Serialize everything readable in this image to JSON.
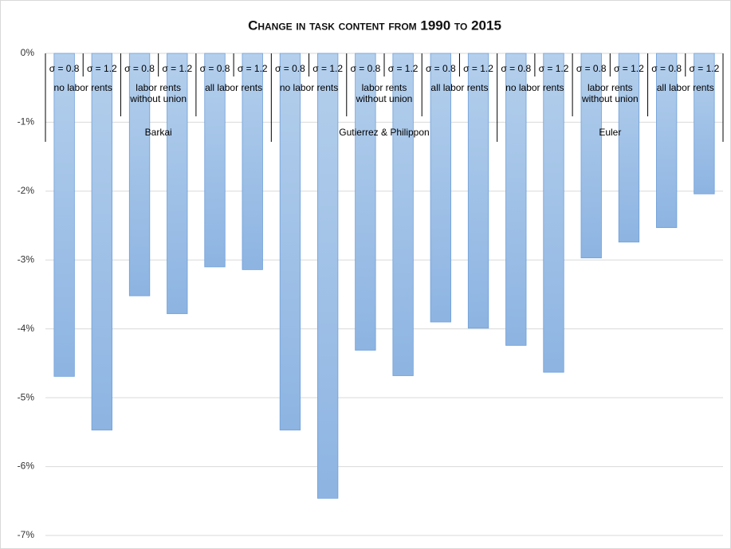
{
  "chart_data": {
    "type": "bar",
    "title": "Change in task content from 1990 to 2015",
    "categories": [
      "σ = 0.8",
      "σ = 1.2",
      "σ = 0.8",
      "σ = 1.2",
      "σ = 0.8",
      "σ = 1.2",
      "σ = 0.8",
      "σ = 1.2",
      "σ = 0.8",
      "σ = 1.2",
      "σ = 0.8",
      "σ = 1.2",
      "σ = 0.8",
      "σ = 1.2",
      "σ = 0.8",
      "σ = 1.2",
      "σ = 0.8",
      "σ = 1.2"
    ],
    "groups": [
      "no labor rents",
      "labor rents without union",
      "all labor rents",
      "no labor rents",
      "labor rents without union",
      "all labor rents",
      "no labor rents",
      "labor rents without union",
      "all labor rents"
    ],
    "supergroups": [
      "Barkai",
      "Gutierrez & Philippon",
      "Euler"
    ],
    "values": [
      -4.69,
      -5.47,
      -3.52,
      -3.78,
      -3.1,
      -3.14,
      -5.47,
      -6.46,
      -4.31,
      -4.68,
      -3.9,
      -3.99,
      -4.24,
      -4.63,
      -2.97,
      -2.74,
      -2.53,
      -2.04
    ],
    "color": "#9dc3e6",
    "ylim": [
      -7,
      0
    ],
    "yticks": [
      {
        "value": 0,
        "label": "0%"
      },
      {
        "value": -1,
        "label": "-1%"
      },
      {
        "value": -2,
        "label": "-2%"
      },
      {
        "value": -3,
        "label": "-3%"
      },
      {
        "value": -4,
        "label": "-4%"
      },
      {
        "value": -5,
        "label": "-5%"
      },
      {
        "value": -6,
        "label": "-6%"
      },
      {
        "value": -7,
        "label": "-7%"
      }
    ],
    "grid": true
  }
}
